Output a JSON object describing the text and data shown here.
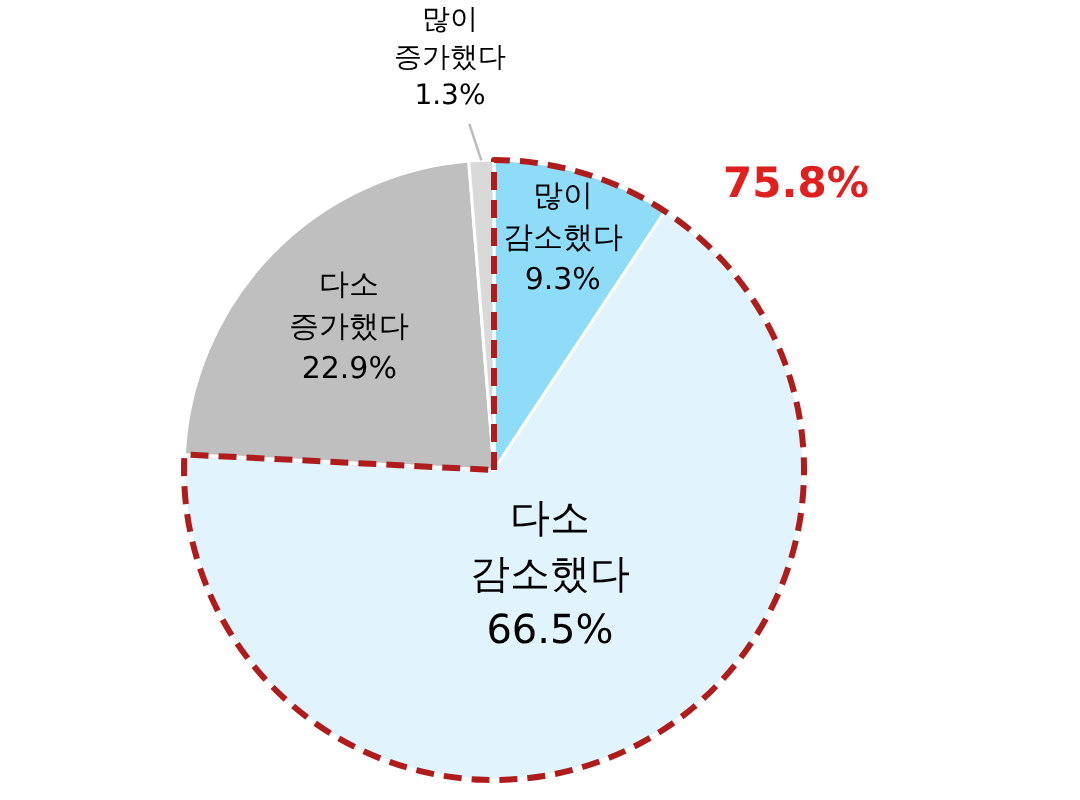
{
  "chart_data": {
    "type": "pie",
    "categories": [
      "많이 감소했다",
      "다소 감소했다",
      "다소 증가했다",
      "많이 증가했다"
    ],
    "values": [
      9.3,
      66.5,
      22.9,
      1.3
    ],
    "value_labels": [
      "9.3%",
      "66.5%",
      "22.9%",
      "1.3%"
    ],
    "colors": [
      "#8fdcf8",
      "#e1f3fc",
      "#bfbfbf",
      "#d9d9d9"
    ],
    "annotations": [
      "75.8%"
    ]
  }
}
